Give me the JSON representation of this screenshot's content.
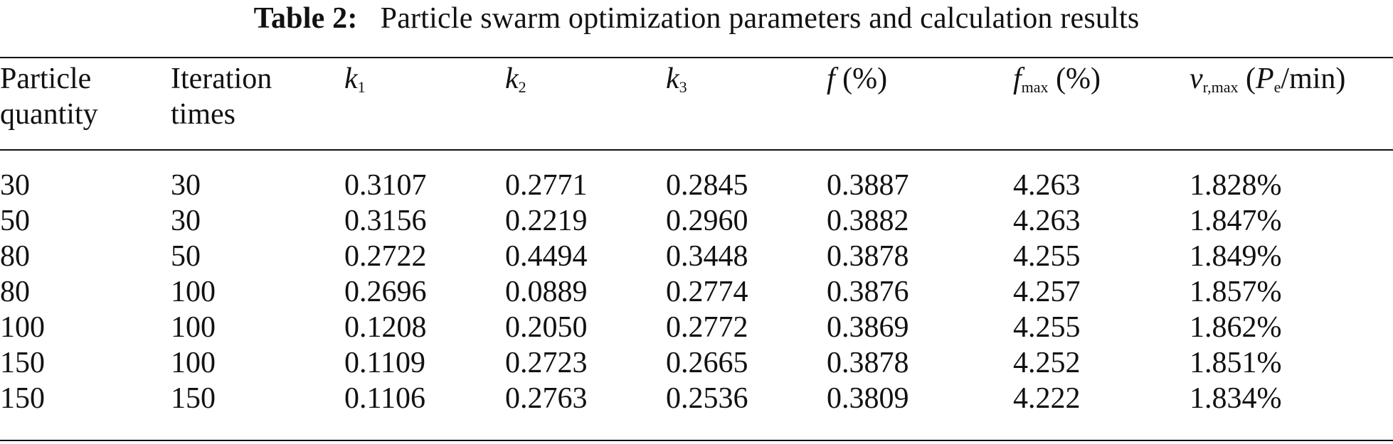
{
  "caption": {
    "label": "Table 2:",
    "text": "Particle swarm optimization parameters and calculation results"
  },
  "table": {
    "headers": {
      "particle_quantity": [
        "Particle",
        "quantity"
      ],
      "iteration_times": [
        "Iteration",
        "times"
      ],
      "k1": {
        "symbol": "k",
        "sub": "1"
      },
      "k2": {
        "symbol": "k",
        "sub": "2"
      },
      "k3": {
        "symbol": "k",
        "sub": "3"
      },
      "f": {
        "symbol": "f",
        "unit": " (%)"
      },
      "fmax": {
        "symbol": "f",
        "sub": "max",
        "unit": " (%)"
      },
      "vrmax": {
        "symbol": "v",
        "sub": "r,max",
        "unit_open": " (",
        "unit_symbol": "P",
        "unit_sub": "e",
        "unit_close": "/min)"
      }
    },
    "rows": [
      [
        "30",
        "30",
        "0.3107",
        "0.2771",
        "0.2845",
        "0.3887",
        "4.263",
        "1.828%"
      ],
      [
        "50",
        "30",
        "0.3156",
        "0.2219",
        "0.2960",
        "0.3882",
        "4.263",
        "1.847%"
      ],
      [
        "80",
        "50",
        "0.2722",
        "0.4494",
        "0.3448",
        "0.3878",
        "4.255",
        "1.849%"
      ],
      [
        "80",
        "100",
        "0.2696",
        "0.0889",
        "0.2774",
        "0.3876",
        "4.257",
        "1.857%"
      ],
      [
        "100",
        "100",
        "0.1208",
        "0.2050",
        "0.2772",
        "0.3869",
        "4.255",
        "1.862%"
      ],
      [
        "150",
        "100",
        "0.1109",
        "0.2723",
        "0.2665",
        "0.3878",
        "4.252",
        "1.851%"
      ],
      [
        "150",
        "150",
        "0.1106",
        "0.2763",
        "0.2536",
        "0.3809",
        "4.222",
        "1.834%"
      ]
    ]
  }
}
